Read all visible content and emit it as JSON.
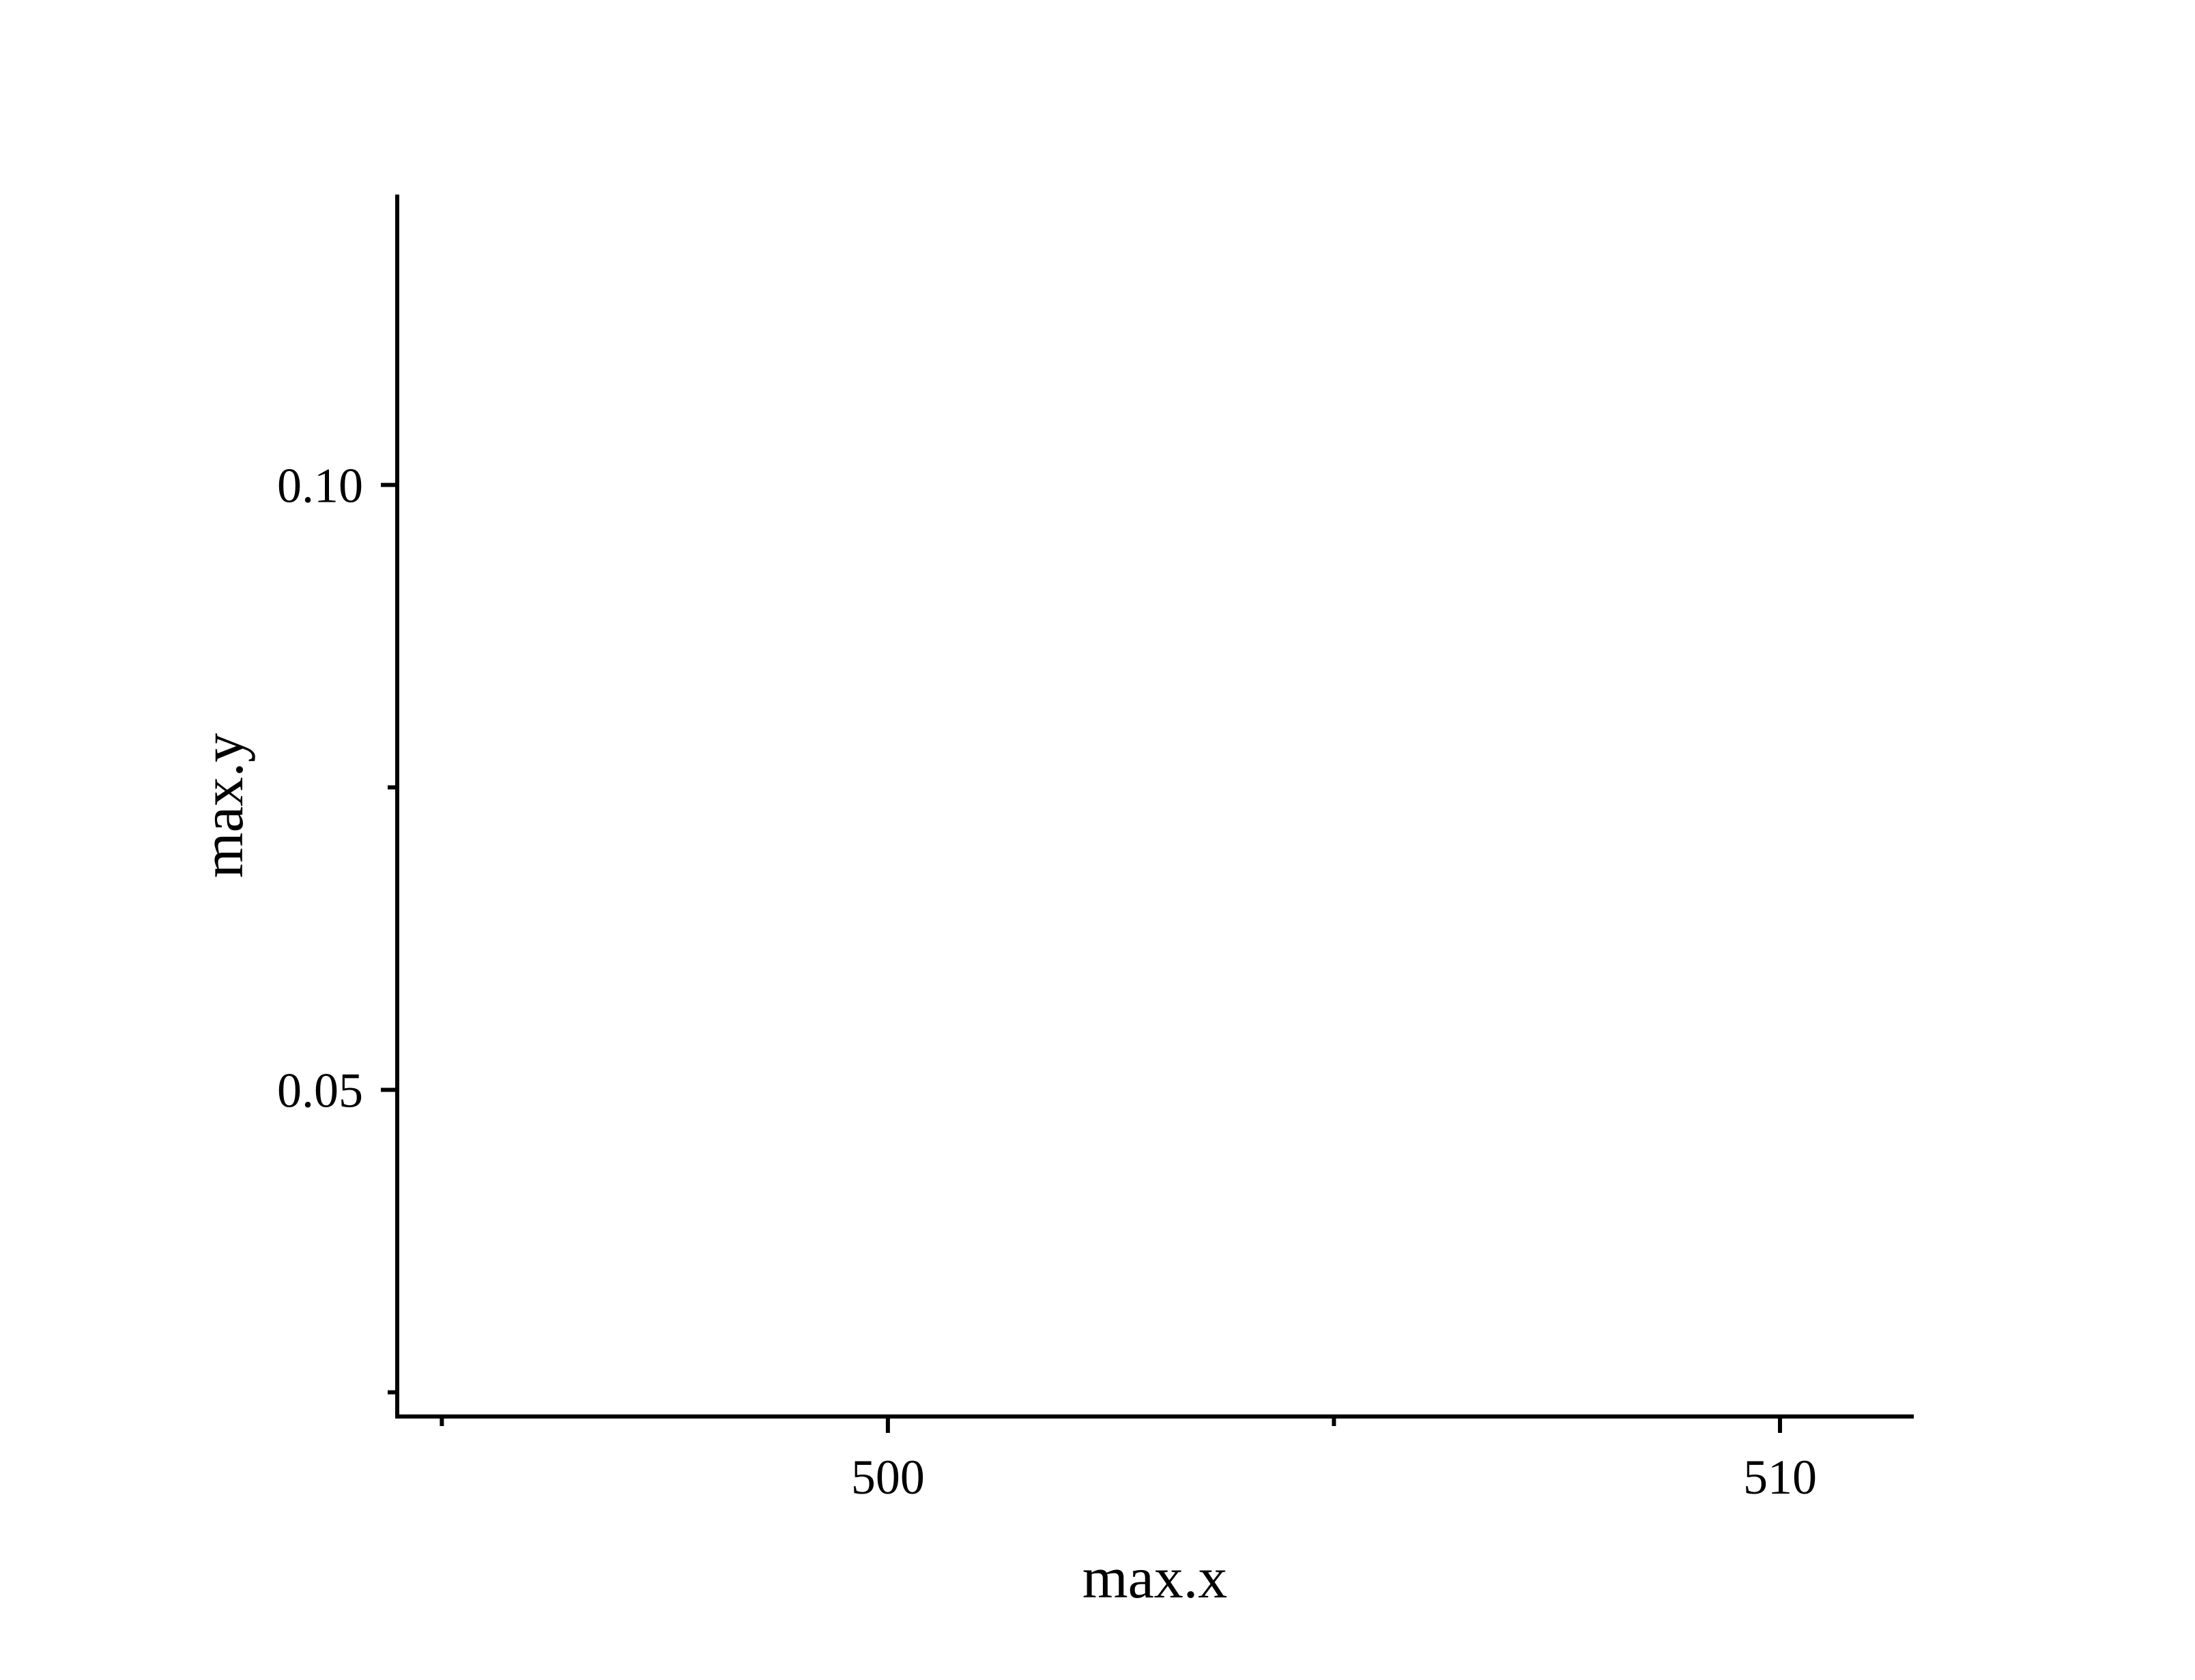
{
  "chart_data": {
    "type": "scatter",
    "title": "",
    "xlabel": "max.x",
    "ylabel": "max.y",
    "xlim": [
      494.5,
      511.5
    ],
    "ylim": [
      0.023,
      0.124
    ],
    "x_major_ticks": [
      500,
      510
    ],
    "x_minor_ticks": [
      495,
      505
    ],
    "x_tick_labels": [
      "500",
      "510"
    ],
    "y_major_ticks": [
      0.05,
      0.1
    ],
    "y_minor_ticks": [
      0.025,
      0.075
    ],
    "y_tick_labels": [
      "0.05",
      "0.10"
    ],
    "series": [],
    "grid": false,
    "legend": "none",
    "colors": {
      "axis": "#000000",
      "background": "#ffffff"
    }
  }
}
